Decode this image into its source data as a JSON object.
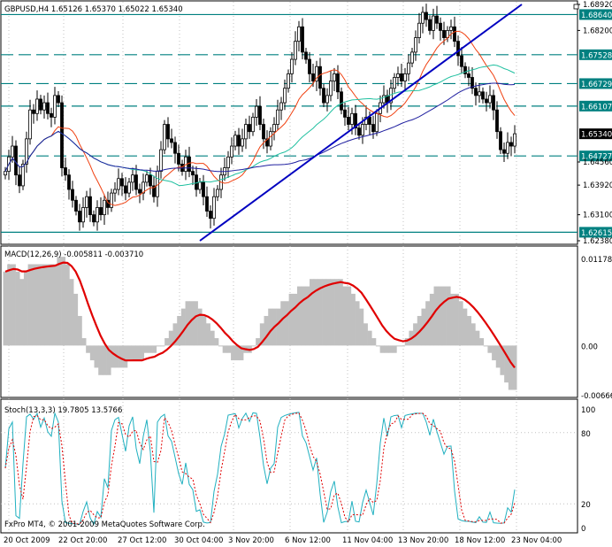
{
  "symbol_header": "GBPUSD,H4  1.65126 1.65370 1.65022 1.65340",
  "macd_header": "MACD(12,26,9) -0.005811 -0.003710",
  "stoch_header": "Stoch(13,3,3) 19.7805 13.5766",
  "copyright": "FxPro MT4, © 2001-2009 MetaQuotes Software Corp.",
  "colors": {
    "background": "#ffffff",
    "grid": "#c0c0c0",
    "candle": "#000000",
    "trendline": "#0000c0",
    "hline": "#008080",
    "ma_fast": "#f04010",
    "ma_mid": "#20c0a0",
    "ma_slow": "#2020a0",
    "macd_hist": "#c0c0c0",
    "macd_signal": "#e00000",
    "stoch_main": "#20b0c0",
    "stoch_signal": "#e00000",
    "price_box": "#000000"
  },
  "price_axis": {
    "ticks": [
      "1.68920",
      "1.68200",
      "1.67528",
      "1.66729",
      "1.66107",
      "1.65340",
      "1.64727",
      "1.64560",
      "1.63920",
      "1.63100",
      "1.62615",
      "1.62380"
    ],
    "labels": [
      {
        "text": "1.68920",
        "value": 1.6892,
        "style": "plain"
      },
      {
        "text": "1.68640",
        "value": 1.6864,
        "style": "hline"
      },
      {
        "text": "1.68200",
        "value": 1.682,
        "style": "plain"
      },
      {
        "text": "1.67528",
        "value": 1.67528,
        "style": "hline"
      },
      {
        "text": "1.66729",
        "value": 1.66729,
        "style": "hline"
      },
      {
        "text": "1.66107",
        "value": 1.66107,
        "style": "hline"
      },
      {
        "text": "1.65340",
        "value": 1.6534,
        "style": "current"
      },
      {
        "text": "1.64727",
        "value": 1.64727,
        "style": "hline"
      },
      {
        "text": "1.64560",
        "value": 1.6456,
        "style": "plain"
      },
      {
        "text": "1.63920",
        "value": 1.6392,
        "style": "plain"
      },
      {
        "text": "1.63100",
        "value": 1.631,
        "style": "plain"
      },
      {
        "text": "1.62615",
        "value": 1.62615,
        "style": "hline"
      },
      {
        "text": "1.62380",
        "value": 1.6238,
        "style": "plain"
      }
    ]
  },
  "macd_axis": {
    "labels": [
      "0.01178",
      "0.00",
      "-0.00666"
    ],
    "max": 0.01178,
    "min": -0.00666
  },
  "stoch_axis": {
    "labels": [
      "100",
      "80",
      "20",
      "0"
    ]
  },
  "time_axis": {
    "labels": [
      "20 Oct 2009",
      "22 Oct 20:00",
      "27 Oct 12:00",
      "30 Oct 04:00",
      "3 Nov 20:00",
      "6 Nov 12:00",
      "11 Nov 04:00",
      "13 Nov 20:00",
      "18 Nov 12:00",
      "23 Nov 04:00"
    ]
  },
  "chart_data": {
    "type": "candlestick",
    "symbol": "GBPUSD",
    "timeframe": "H4",
    "last": {
      "open": 1.65126,
      "high": 1.6537,
      "low": 1.65022,
      "close": 1.6534
    },
    "price_range": [
      1.6238,
      1.6892
    ],
    "horizontal_levels": [
      1.6864,
      1.67528,
      1.66729,
      1.66107,
      1.64727,
      1.62615
    ],
    "close_series": [
      1.643,
      1.647,
      1.65,
      1.642,
      1.639,
      1.645,
      1.652,
      1.66,
      1.659,
      1.663,
      1.66,
      1.662,
      1.659,
      1.658,
      1.664,
      1.662,
      1.644,
      1.642,
      1.638,
      1.635,
      1.632,
      1.629,
      1.633,
      1.636,
      1.631,
      1.629,
      1.633,
      1.631,
      1.635,
      1.633,
      1.637,
      1.638,
      1.641,
      1.639,
      1.637,
      1.64,
      1.642,
      1.638,
      1.637,
      1.64,
      1.642,
      1.639,
      1.636,
      1.643,
      1.649,
      1.656,
      1.652,
      1.651,
      1.648,
      1.645,
      1.643,
      1.647,
      1.643,
      1.642,
      1.638,
      1.64,
      1.636,
      1.632,
      1.63,
      1.636,
      1.638,
      1.642,
      1.644,
      1.647,
      1.65,
      1.653,
      1.65,
      1.652,
      1.656,
      1.654,
      1.658,
      1.661,
      1.656,
      1.652,
      1.65,
      1.654,
      1.656,
      1.66,
      1.662,
      1.666,
      1.67,
      1.674,
      1.679,
      1.683,
      1.676,
      1.674,
      1.67,
      1.668,
      1.672,
      1.666,
      1.662,
      1.664,
      1.668,
      1.67,
      1.665,
      1.66,
      1.658,
      1.656,
      1.659,
      1.655,
      1.653,
      1.656,
      1.658,
      1.656,
      1.654,
      1.659,
      1.662,
      1.664,
      1.662,
      1.666,
      1.669,
      1.67,
      1.668,
      1.67,
      1.673,
      1.676,
      1.68,
      1.684,
      1.687,
      1.685,
      1.682,
      1.686,
      1.684,
      1.682,
      1.68,
      1.682,
      1.683,
      1.679,
      1.675,
      1.672,
      1.67,
      1.669,
      1.666,
      1.664,
      1.665,
      1.663,
      1.662,
      1.664,
      1.66,
      1.654,
      1.649,
      1.648,
      1.651,
      1.65,
      1.6534
    ],
    "trendline": {
      "start": {
        "index": 55,
        "price": 1.6238
      },
      "end": {
        "index": 146,
        "price": 1.6892
      }
    },
    "moving_averages": [
      "ma_fast",
      "ma_mid",
      "ma_slow"
    ],
    "macd": {
      "params": "12,26,9",
      "main": -0.005811,
      "signal": -0.00371,
      "histogram_series": [
        0.01,
        0.011,
        0.011,
        0.01,
        0.009,
        0.01,
        0.011,
        0.011,
        0.011,
        0.011,
        0.011,
        0.011,
        0.011,
        0.012,
        0.012,
        0.011,
        0.009,
        0.007,
        0.004,
        0.001,
        -0.001,
        -0.002,
        -0.003,
        -0.004,
        -0.004,
        -0.004,
        -0.003,
        -0.003,
        -0.003,
        -0.003,
        -0.002,
        -0.002,
        -0.002,
        -0.002,
        -0.001,
        -0.001,
        -0.001,
        0.0,
        0.0,
        0.001,
        0.002,
        0.003,
        0.004,
        0.005,
        0.006,
        0.006,
        0.006,
        0.005,
        0.004,
        0.003,
        0.002,
        0.001,
        0.0,
        -0.001,
        -0.001,
        -0.002,
        -0.002,
        -0.002,
        -0.001,
        -0.001,
        0.0,
        0.001,
        0.003,
        0.004,
        0.005,
        0.005,
        0.005,
        0.006,
        0.006,
        0.007,
        0.007,
        0.008,
        0.008,
        0.008,
        0.009,
        0.009,
        0.009,
        0.009,
        0.009,
        0.009,
        0.009,
        0.009,
        0.008,
        0.008,
        0.007,
        0.006,
        0.005,
        0.003,
        0.002,
        0.001,
        0.0,
        -0.001,
        -0.001,
        -0.001,
        -0.001,
        0.0,
        0.0,
        0.001,
        0.002,
        0.003,
        0.004,
        0.005,
        0.006,
        0.007,
        0.008,
        0.008,
        0.008,
        0.008,
        0.007,
        0.007,
        0.006,
        0.005,
        0.004,
        0.003,
        0.002,
        0.001,
        0.0,
        -0.001,
        -0.002,
        -0.003,
        -0.004,
        -0.005,
        -0.006,
        -0.006
      ]
    },
    "stochastic": {
      "params": "13,3,3",
      "main": 19.7805,
      "signal": 13.5766
    }
  }
}
